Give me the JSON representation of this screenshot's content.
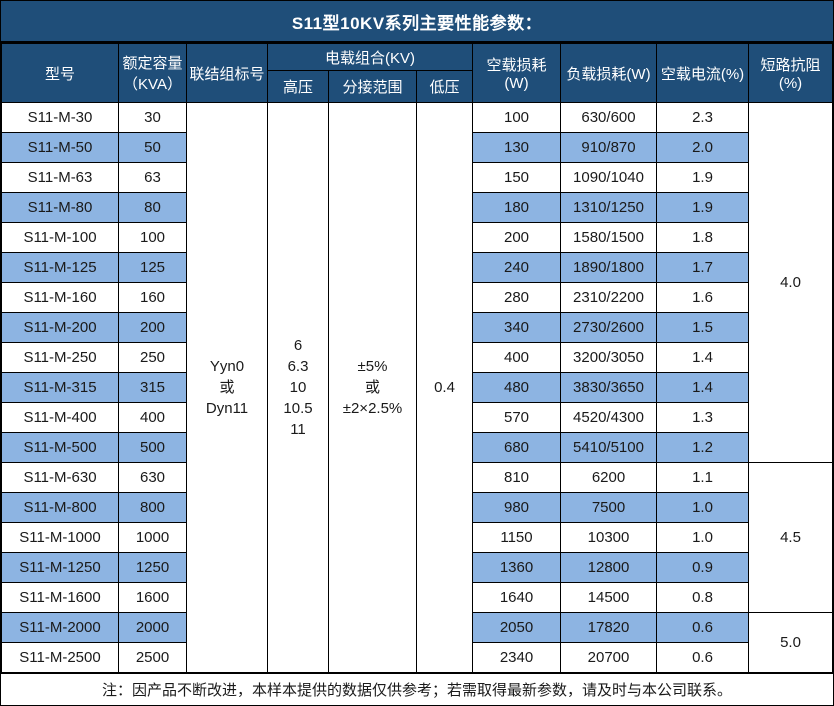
{
  "title": "S11型10KV系列主要性能参数：",
  "header": {
    "model": "型号",
    "capacity_line1": "额定容量",
    "capacity_line2": "（KVA）",
    "connection": "联结组标号",
    "load_combo": "电载组合(KV)",
    "hv": "高压",
    "tap_range": "分接范围",
    "lv": "低压",
    "no_load_loss": "空载损耗(W)",
    "load_loss": "负载损耗(W)",
    "no_load_current": "空载电流(%)",
    "impedance": "短路抗阻(%)"
  },
  "merged_cells": {
    "connection_lines": [
      "Yyn0",
      "或",
      "Dyn11"
    ],
    "hv_lines": [
      "6",
      "6.3",
      "10",
      "10.5",
      "11"
    ],
    "tap_lines": [
      "±5%",
      "或",
      "±2×2.5%"
    ],
    "lv_value": "0.4"
  },
  "rows": [
    {
      "model": "S11-M-30",
      "capacity": "30",
      "no_load_loss": "100",
      "load_loss": "630/600",
      "no_load_current": "2.3"
    },
    {
      "model": "S11-M-50",
      "capacity": "50",
      "no_load_loss": "130",
      "load_loss": "910/870",
      "no_load_current": "2.0"
    },
    {
      "model": "S11-M-63",
      "capacity": "63",
      "no_load_loss": "150",
      "load_loss": "1090/1040",
      "no_load_current": "1.9"
    },
    {
      "model": "S11-M-80",
      "capacity": "80",
      "no_load_loss": "180",
      "load_loss": "1310/1250",
      "no_load_current": "1.9"
    },
    {
      "model": "S11-M-100",
      "capacity": "100",
      "no_load_loss": "200",
      "load_loss": "1580/1500",
      "no_load_current": "1.8"
    },
    {
      "model": "S11-M-125",
      "capacity": "125",
      "no_load_loss": "240",
      "load_loss": "1890/1800",
      "no_load_current": "1.7"
    },
    {
      "model": "S11-M-160",
      "capacity": "160",
      "no_load_loss": "280",
      "load_loss": "2310/2200",
      "no_load_current": "1.6"
    },
    {
      "model": "S11-M-200",
      "capacity": "200",
      "no_load_loss": "340",
      "load_loss": "2730/2600",
      "no_load_current": "1.5"
    },
    {
      "model": "S11-M-250",
      "capacity": "250",
      "no_load_loss": "400",
      "load_loss": "3200/3050",
      "no_load_current": "1.4"
    },
    {
      "model": "S11-M-315",
      "capacity": "315",
      "no_load_loss": "480",
      "load_loss": "3830/3650",
      "no_load_current": "1.4"
    },
    {
      "model": "S11-M-400",
      "capacity": "400",
      "no_load_loss": "570",
      "load_loss": "4520/4300",
      "no_load_current": "1.3"
    },
    {
      "model": "S11-M-500",
      "capacity": "500",
      "no_load_loss": "680",
      "load_loss": "5410/5100",
      "no_load_current": "1.2"
    },
    {
      "model": "S11-M-630",
      "capacity": "630",
      "no_load_loss": "810",
      "load_loss": "6200",
      "no_load_current": "1.1"
    },
    {
      "model": "S11-M-800",
      "capacity": "800",
      "no_load_loss": "980",
      "load_loss": "7500",
      "no_load_current": "1.0"
    },
    {
      "model": "S11-M-1000",
      "capacity": "1000",
      "no_load_loss": "1150",
      "load_loss": "10300",
      "no_load_current": "1.0"
    },
    {
      "model": "S11-M-1250",
      "capacity": "1250",
      "no_load_loss": "1360",
      "load_loss": "12800",
      "no_load_current": "0.9"
    },
    {
      "model": "S11-M-1600",
      "capacity": "1600",
      "no_load_loss": "1640",
      "load_loss": "14500",
      "no_load_current": "0.8"
    },
    {
      "model": "S11-M-2000",
      "capacity": "2000",
      "no_load_loss": "2050",
      "load_loss": "17820",
      "no_load_current": "0.6"
    },
    {
      "model": "S11-M-2500",
      "capacity": "2500",
      "no_load_loss": "2340",
      "load_loss": "20700",
      "no_load_current": "0.6"
    }
  ],
  "impedance_groups": [
    {
      "value": "4.0",
      "row_span": 12
    },
    {
      "value": "4.5",
      "row_span": 5
    },
    {
      "value": "5.0",
      "row_span": 2
    }
  ],
  "note": "注：因产品不断改进，本样本提供的数据仅供参考；若需取得最新参数，请及时与本公司联系。",
  "colors": {
    "header_bg": "#1F4E79",
    "header_text": "#FFFFFF",
    "alt_row_bg": "#8DB4E2",
    "border": "#000000",
    "body_text": "#1A1A1A"
  }
}
